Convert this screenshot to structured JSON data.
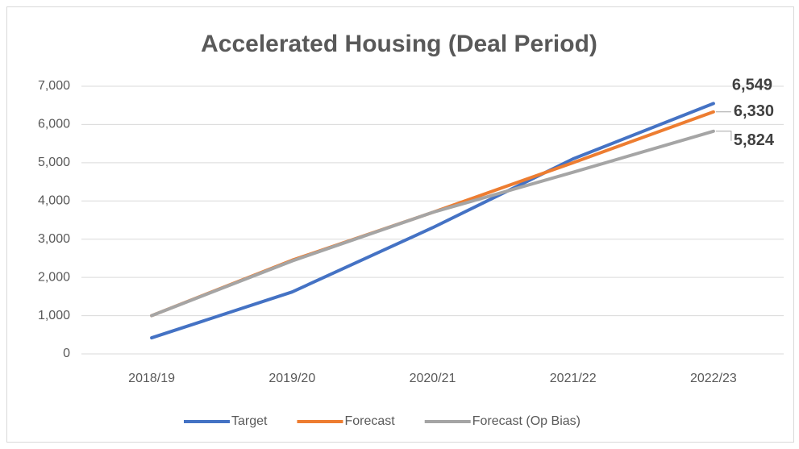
{
  "chart_data": {
    "type": "line",
    "title": "Accelerated Housing (Deal Period)",
    "categories": [
      "2018/19",
      "2019/20",
      "2020/21",
      "2021/22",
      "2022/23"
    ],
    "series": [
      {
        "name": "Target",
        "color": "#4472c4",
        "values": [
          420,
          1620,
          3300,
          5100,
          6549
        ],
        "value_labels": [
          null,
          null,
          null,
          null,
          "6,549"
        ]
      },
      {
        "name": "Forecast",
        "color": "#ed7d31",
        "values": [
          1000,
          2450,
          3700,
          5000,
          6330
        ],
        "value_labels": [
          null,
          null,
          null,
          null,
          "6,330"
        ]
      },
      {
        "name": "Forecast (Op Bias)",
        "color": "#a5a5a5",
        "values": [
          1000,
          2430,
          3700,
          4750,
          5824
        ],
        "value_labels": [
          null,
          null,
          null,
          null,
          "5,824"
        ]
      }
    ],
    "ylim": [
      0,
      7000
    ],
    "yticks": [
      0,
      {
        "value": 1000,
        "label": "1,000"
      },
      {
        "value": 2000,
        "label": "2,000"
      },
      {
        "value": 3000,
        "label": "3,000"
      },
      {
        "value": 4000,
        "label": "4,000"
      },
      {
        "value": 5000,
        "label": "5,000"
      },
      {
        "value": 6000,
        "label": "6,000"
      },
      {
        "value": 7000,
        "label": "7,000"
      }
    ],
    "grid": true,
    "legend": "bottom"
  }
}
